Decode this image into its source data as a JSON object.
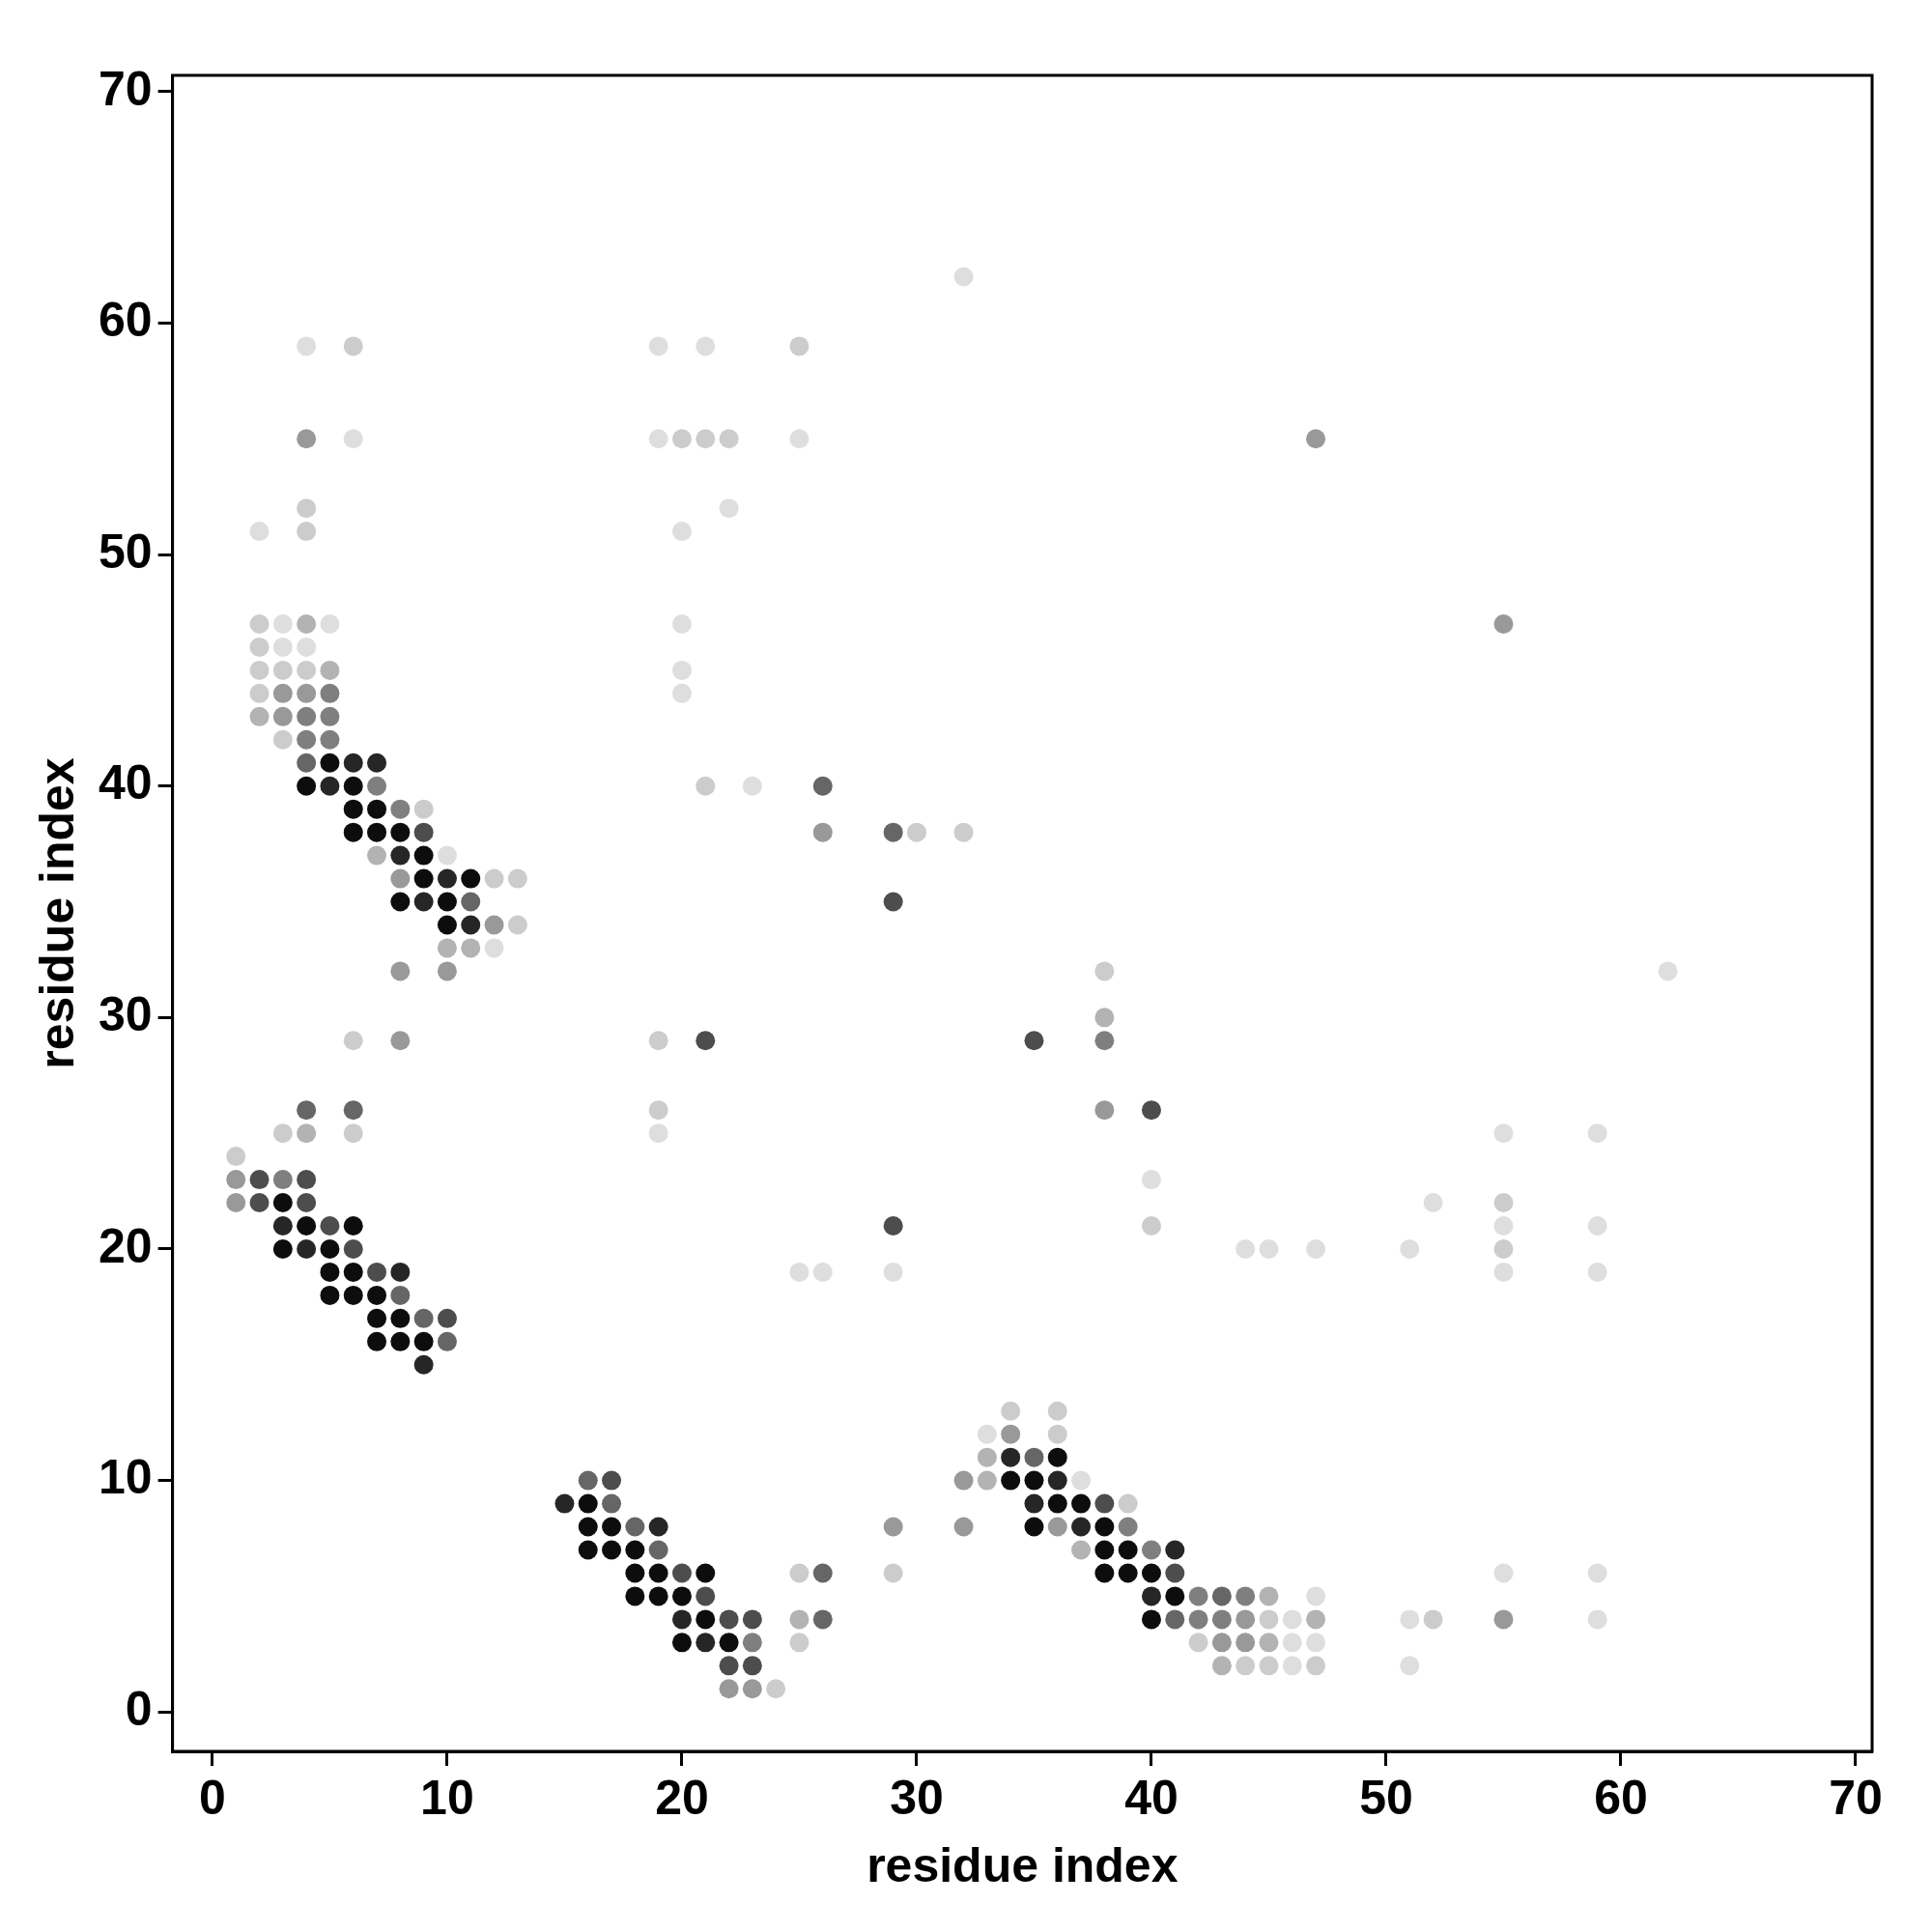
{
  "chart_data": {
    "type": "scatter",
    "xlabel": "residue index",
    "ylabel": "residue index",
    "xlim": [
      -1.7,
      70.7
    ],
    "ylim": [
      -1.7,
      70.7
    ],
    "xticks": [
      0,
      10,
      20,
      30,
      40,
      50,
      60,
      70
    ],
    "yticks": [
      0,
      10,
      20,
      30,
      40,
      50,
      60,
      70
    ],
    "grid": false,
    "marker": "circle",
    "series": [
      {
        "color": "#0d0d0d",
        "x": [
          5,
          4,
          6,
          6,
          7,
          6,
          7,
          8,
          9,
          9,
          11,
          8,
          10,
          10,
          3,
          4,
          6,
          3,
          5,
          5,
          6,
          5,
          6,
          7,
          7,
          8,
          7,
          8,
          9,
          16,
          16,
          17,
          16,
          17,
          18,
          18,
          19,
          21,
          18,
          19,
          20,
          21,
          20,
          22,
          36,
          34,
          35,
          36,
          37,
          35,
          38,
          38,
          39,
          38,
          39,
          40,
          41,
          40
        ],
        "values": [
          41,
          40,
          40,
          39,
          39,
          38,
          38,
          38,
          37,
          36,
          36,
          35,
          35,
          34,
          22,
          21,
          21,
          20,
          20,
          19,
          19,
          18,
          18,
          18,
          17,
          17,
          16,
          16,
          16,
          9,
          8,
          8,
          7,
          7,
          7,
          6,
          6,
          6,
          5,
          5,
          5,
          4,
          3,
          3,
          11,
          10,
          10,
          9,
          9,
          8,
          8,
          7,
          7,
          6,
          6,
          6,
          5,
          4
        ]
      },
      {
        "color": "#262626",
        "x": [
          6,
          7,
          5,
          8,
          10,
          9,
          11,
          9,
          3,
          4,
          8,
          15,
          19,
          20,
          21,
          34,
          36,
          35,
          37,
          41,
          40
        ],
        "values": [
          41,
          41,
          40,
          37,
          36,
          35,
          34,
          15,
          21,
          20,
          19,
          9,
          8,
          4,
          3,
          11,
          10,
          9,
          8,
          7,
          5
        ]
      },
      {
        "color": "#4d4d4d",
        "x": [
          9,
          2,
          4,
          2,
          4,
          5,
          6,
          7,
          10,
          17,
          20,
          21,
          22,
          23,
          22,
          23,
          38,
          41,
          29,
          21,
          35,
          40,
          29
        ],
        "values": [
          38,
          23,
          23,
          22,
          22,
          21,
          20,
          19,
          17,
          10,
          6,
          5,
          4,
          4,
          2,
          2,
          9,
          6,
          35,
          29,
          29,
          26,
          21
        ]
      },
      {
        "color": "#666666",
        "x": [
          4,
          11,
          4,
          6,
          8,
          9,
          10,
          16,
          17,
          18,
          19,
          26,
          26,
          35,
          43,
          41,
          26,
          29
        ],
        "values": [
          41,
          35,
          26,
          26,
          18,
          17,
          16,
          10,
          9,
          8,
          7,
          6,
          4,
          11,
          5,
          4,
          40,
          38
        ]
      },
      {
        "color": "#7f7f7f",
        "x": [
          5,
          4,
          5,
          4,
          5,
          7,
          8,
          3,
          23,
          39,
          40,
          42,
          44,
          42,
          43,
          38
        ],
        "values": [
          44,
          43,
          43,
          42,
          42,
          40,
          39,
          23,
          3,
          8,
          7,
          5,
          5,
          4,
          4,
          29
        ]
      },
      {
        "color": "#999999",
        "x": [
          3,
          4,
          3,
          12,
          8,
          8,
          10,
          1,
          1,
          22,
          23,
          34,
          32,
          32,
          36,
          44,
          43,
          44,
          4,
          47,
          55,
          26,
          8,
          38,
          29,
          55
        ],
        "values": [
          44,
          44,
          43,
          34,
          36,
          32,
          32,
          23,
          22,
          1,
          1,
          12,
          10,
          8,
          8,
          4,
          3,
          3,
          55,
          55,
          47,
          38,
          29,
          26,
          8,
          4
        ]
      },
      {
        "color": "#b3b3b3",
        "x": [
          4,
          5,
          2,
          7,
          10,
          11,
          4,
          25,
          33,
          33,
          37,
          45,
          47,
          45,
          43,
          38
        ],
        "values": [
          47,
          45,
          43,
          37,
          33,
          33,
          25,
          4,
          11,
          10,
          7,
          5,
          4,
          3,
          2,
          30
        ]
      },
      {
        "color": "#cccccc",
        "x": [
          2,
          2,
          2,
          3,
          4,
          2,
          3,
          9,
          12,
          13,
          13,
          3,
          6,
          1,
          25,
          25,
          24,
          34,
          36,
          36,
          39,
          45,
          42,
          44,
          45,
          47,
          6,
          25,
          20,
          21,
          22,
          4,
          4,
          21,
          30,
          32,
          38,
          6,
          19,
          19,
          55,
          40,
          55,
          29,
          52
        ],
        "values": [
          47,
          46,
          45,
          45,
          45,
          44,
          42,
          39,
          36,
          36,
          34,
          25,
          25,
          24,
          6,
          3,
          1,
          13,
          13,
          12,
          9,
          4,
          3,
          2,
          2,
          2,
          59,
          59,
          55,
          55,
          55,
          52,
          51,
          40,
          38,
          38,
          32,
          29,
          29,
          26,
          22,
          21,
          20,
          6,
          4
        ]
      },
      {
        "color": "#dedede",
        "x": [
          3,
          5,
          3,
          4,
          10,
          12,
          33,
          37,
          47,
          46,
          46,
          47,
          46,
          32,
          4,
          19,
          21,
          6,
          19,
          25,
          22,
          2,
          20,
          20,
          20,
          20,
          23,
          62,
          19,
          55,
          59,
          40,
          52,
          55,
          59,
          44,
          45,
          47,
          51,
          25,
          26,
          29,
          55,
          59,
          55,
          59,
          51,
          59,
          51
        ],
        "values": [
          47,
          47,
          46,
          46,
          37,
          33,
          12,
          10,
          5,
          4,
          3,
          3,
          2,
          62,
          59,
          59,
          59,
          55,
          55,
          55,
          52,
          51,
          51,
          47,
          45,
          44,
          40,
          32,
          25,
          25,
          25,
          23,
          22,
          21,
          21,
          20,
          20,
          20,
          20,
          19,
          19,
          19,
          19,
          19,
          6,
          6,
          4,
          4,
          2
        ]
      }
    ]
  }
}
